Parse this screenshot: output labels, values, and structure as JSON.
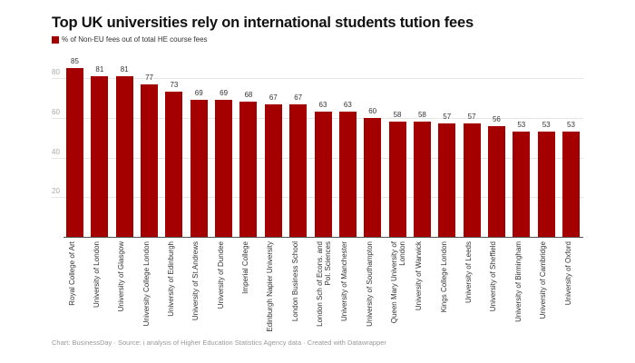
{
  "title": "Top UK universities rely on international students tution fees",
  "legend": {
    "label": "% of Non-EU fees out of total HE course fees",
    "color": "#a50000"
  },
  "footer": "Chart: BusinessDay · Source: i analysis of Higher Education Statistics Agency data · Created with Datawrapper",
  "chart_data": {
    "type": "bar",
    "title": "Top UK universities rely on international students tution fees",
    "xlabel": "",
    "ylabel": "",
    "ylim": [
      0,
      90
    ],
    "yticks": [
      20,
      40,
      60,
      80
    ],
    "grid": true,
    "legend_position": "top-left",
    "series": [
      {
        "name": "% of Non-EU fees out of total HE course fees",
        "color": "#a50000",
        "values": [
          85,
          81,
          81,
          77,
          73,
          69,
          69,
          68,
          67,
          67,
          63,
          63,
          60,
          58,
          58,
          57,
          57,
          56,
          53,
          53,
          53
        ]
      }
    ],
    "categories": [
      "Royal College of Art",
      "University of London",
      "University of Glasgow",
      "University College London",
      "University of Edinburgh",
      "University of St.Andrews",
      "University of Dundee",
      "Imperial College",
      "Edinburgh Napier University",
      "London Business School",
      "London Sch of Econs. and Pol. Sciences",
      "University of Manchester",
      "University of Southampton",
      "Queen Mary University of London",
      "University of Warwick",
      "Kings College London",
      "University of Leeds",
      "University of Sheffield",
      "University of Birmingham",
      "University of Cambridge",
      "University of Oxford"
    ],
    "values": [
      85,
      81,
      81,
      77,
      73,
      69,
      69,
      68,
      67,
      67,
      63,
      63,
      60,
      58,
      58,
      57,
      57,
      56,
      53,
      53,
      53
    ]
  }
}
